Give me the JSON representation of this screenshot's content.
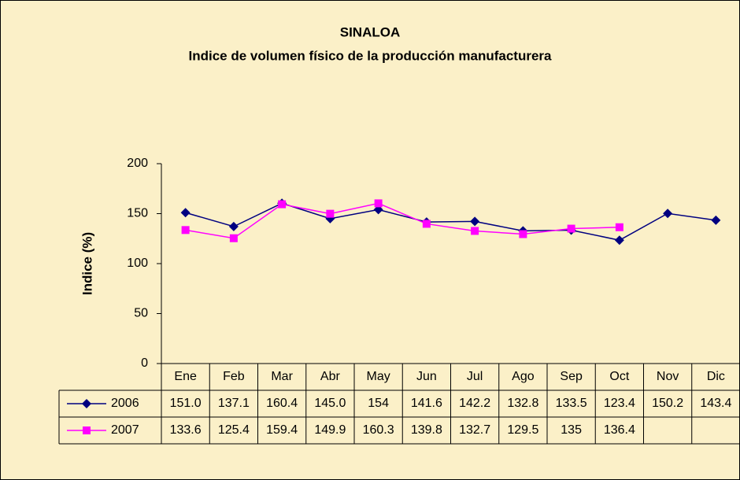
{
  "chart_data": {
    "type": "line",
    "title": "SINALOA",
    "subtitle": "Indice de volumen físico de la producción manufacturera",
    "y_label": "Indice (%)",
    "categories": [
      "Ene",
      "Feb",
      "Mar",
      "Abr",
      "May",
      "Jun",
      "Jul",
      "Ago",
      "Sep",
      "Oct",
      "Nov",
      "Dic"
    ],
    "series": [
      {
        "name": "2006",
        "color": "#000080",
        "marker": "diamond",
        "values": [
          151.0,
          137.1,
          160.4,
          145.0,
          154,
          141.6,
          142.2,
          132.8,
          133.5,
          123.4,
          150.2,
          143.4
        ],
        "value_labels": [
          "151.0",
          "137.1",
          "160.4",
          "145.0",
          "154",
          "141.6",
          "142.2",
          "132.8",
          "133.5",
          "123.4",
          "150.2",
          "143.4"
        ]
      },
      {
        "name": "2007",
        "color": "#ff00ff",
        "marker": "square",
        "values": [
          133.6,
          125.4,
          159.4,
          149.9,
          160.3,
          139.8,
          132.7,
          129.5,
          135,
          136.4,
          null,
          null
        ],
        "value_labels": [
          "133.6",
          "125.4",
          "159.4",
          "149.9",
          "160.3",
          "139.8",
          "132.7",
          "129.5",
          "135",
          "136.4",
          null,
          null
        ]
      }
    ],
    "ylim": [
      0,
      200
    ],
    "yticks": [
      0,
      50,
      100,
      150,
      200
    ],
    "grid": false,
    "data_table": true
  }
}
